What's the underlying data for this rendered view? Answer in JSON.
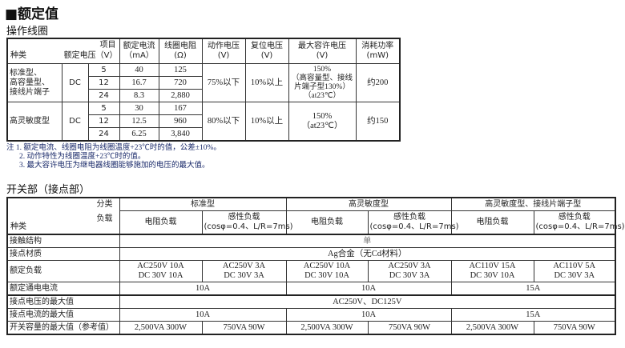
{
  "title": "■额定值",
  "coil": {
    "heading": "操作线圈",
    "headers": {
      "item": "项目",
      "kind": "种类",
      "rated_voltage": "额定电压（V）",
      "current": "额定电流",
      "current_unit": "（mA）",
      "resistance": "线圈电阻",
      "resistance_unit": "(Ω)",
      "operate": "动作电压",
      "operate_unit": "(V)",
      "release": "复位电压",
      "release_unit": "(V)",
      "max": "最大容许电压",
      "max_unit": "(V)",
      "power": "消耗功率",
      "power_unit": "(mW)"
    },
    "groups": [
      {
        "kind_lines": [
          "标准型、",
          "高容量型、",
          "接线片端子"
        ],
        "type": "DC",
        "rows": [
          [
            "5",
            "40",
            "125"
          ],
          [
            "12",
            "16.7",
            "720"
          ],
          [
            "24",
            "8.3",
            "2,880"
          ]
        ],
        "operate": "75%以下",
        "release": "10%以上",
        "max_lines": [
          "150%",
          "（高容量型、接线",
          "片端子型130%）",
          "（at23℃）"
        ],
        "power": "约200"
      },
      {
        "kind_lines": [
          "高灵敏度型"
        ],
        "type": "DC",
        "rows": [
          [
            "5",
            "30",
            "167"
          ],
          [
            "12",
            "12.5",
            "960"
          ],
          [
            "24",
            "6.25",
            "3,840"
          ]
        ],
        "operate": "80%以下",
        "release": "10%以上",
        "max_lines": [
          "150%",
          "（at23℃）"
        ],
        "power": "约150"
      }
    ],
    "notes": [
      "注  1. 额定电流、线圈电阻为线圈温度+23℃时的值，公差±10%。",
      "2. 动作特性为线圈温度+23℃时的值。",
      "3. 最大容许电压为继电器线圈能够施加的电压的最大值。"
    ]
  },
  "contact": {
    "heading": "开关部（接点部）",
    "hdr": {
      "category": "分类",
      "load": "负载",
      "kind": "种类"
    },
    "categories": [
      "标准型",
      "高灵敏度型",
      "高灵敏度型、接线片端子型"
    ],
    "loads": {
      "resistive": "电阻负载",
      "inductive": "感性负载",
      "inductive_cond": "(cosφ=0.4、L/R=7ms)"
    },
    "rows": {
      "structure": {
        "label": "接触结构",
        "value": "单"
      },
      "material": {
        "label": "接点材质",
        "value": "Ag合金（无Cd材料）"
      },
      "rated_load": {
        "label": "额定负载",
        "values": [
          [
            "AC250V 10A",
            "DC  30V 10A"
          ],
          [
            "AC250V  3A",
            "DC  30V  3A"
          ],
          [
            "AC250V 10A",
            "DC  30V 10A"
          ],
          [
            "AC250V  3A",
            "DC  30V  3A"
          ],
          [
            "AC110V 15A",
            "DC  30V 10A"
          ],
          [
            "AC110V  5A",
            "DC  30V  3A"
          ]
        ]
      },
      "carry_current": {
        "label": "额定通电电流",
        "values": [
          "10A",
          "10A",
          "15A"
        ]
      },
      "max_voltage": {
        "label": "接点电压的最大值",
        "value": "AC250V、DC125V"
      },
      "max_current": {
        "label": "接点电流的最大值",
        "values": [
          "10A",
          "10A",
          "15A"
        ]
      },
      "max_capacity": {
        "label": "开关容量的最大值（参考值）",
        "values": [
          "2,500VA 300W",
          "750VA 90W",
          "2,500VA 300W",
          "750VA 90W",
          "2,500VA 300W",
          "750VA 90W"
        ]
      }
    }
  }
}
